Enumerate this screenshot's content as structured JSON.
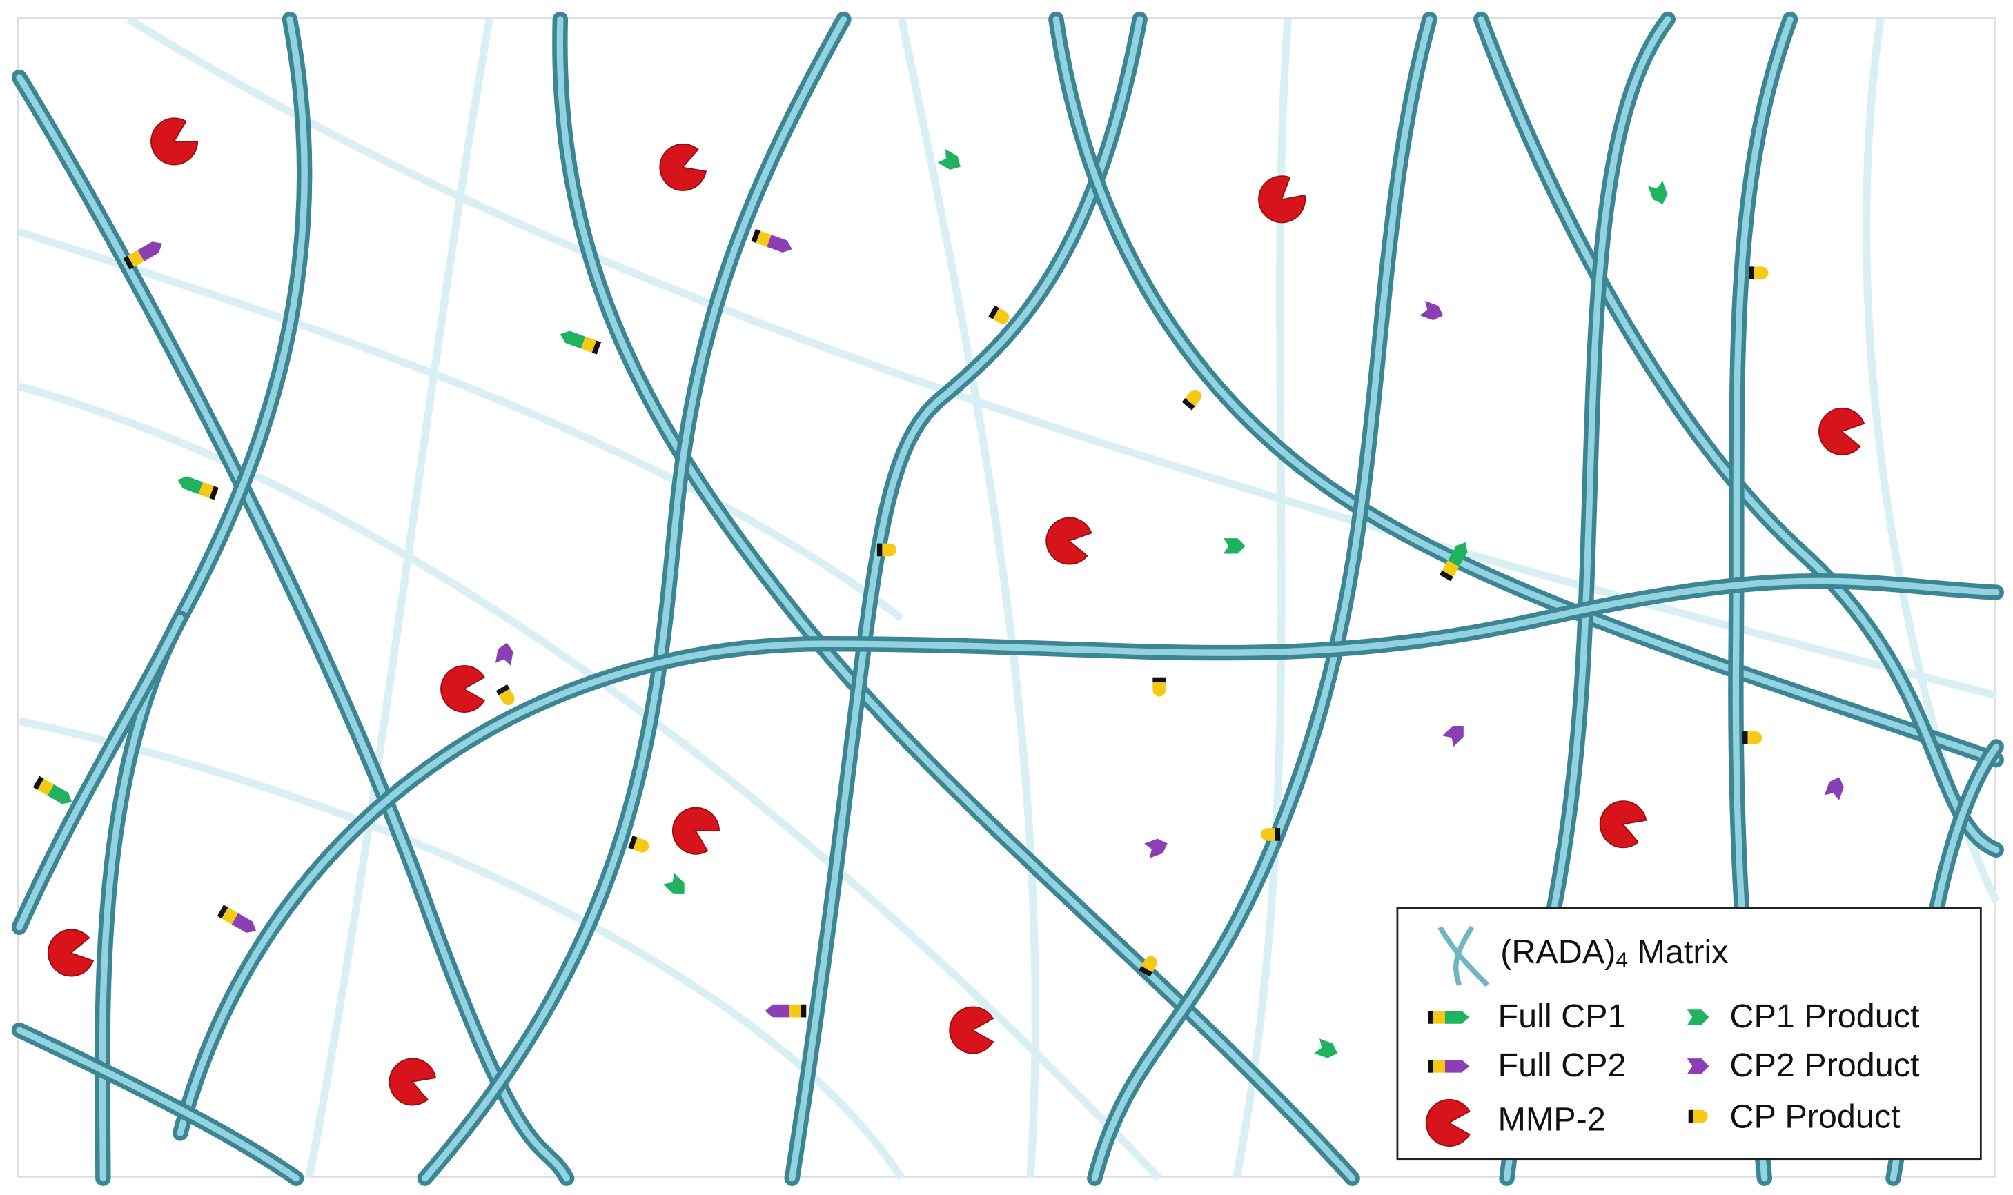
{
  "legend": {
    "items": [
      {
        "parts": [
          "(RADA)",
          "4",
          " Matrix"
        ]
      },
      {
        "label": "Full CP1"
      },
      {
        "label": "Full CP2"
      },
      {
        "label": "MMP-2"
      },
      {
        "label": "CP1 Product"
      },
      {
        "label": "CP2 Product"
      },
      {
        "label": "CP Product"
      }
    ]
  }
}
